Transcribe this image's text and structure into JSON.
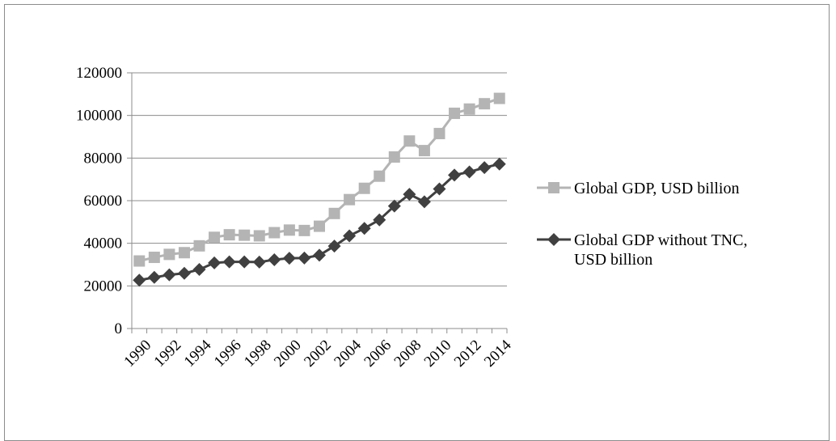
{
  "chart_data": {
    "type": "line",
    "categories": [
      "1990",
      "1991",
      "1992",
      "1993",
      "1994",
      "1995",
      "1996",
      "1997",
      "1998",
      "1999",
      "2000",
      "2001",
      "2002",
      "2003",
      "2004",
      "2005",
      "2006",
      "2007",
      "2008",
      "2009",
      "2010",
      "2011",
      "2012",
      "2013",
      "2014"
    ],
    "x_tick_labels": [
      "1990",
      "1992",
      "1994",
      "1996",
      "1998",
      "2000",
      "2002",
      "2004",
      "2006",
      "2008",
      "2010",
      "2012",
      "2014"
    ],
    "y_tick_labels": [
      "0",
      "20000",
      "40000",
      "60000",
      "80000",
      "100000",
      "120000"
    ],
    "ylim": [
      0,
      120000
    ],
    "y_ticks": [
      0,
      20000,
      40000,
      60000,
      80000,
      100000,
      120000
    ],
    "grid": "horizontal",
    "legend_position": "right",
    "series": [
      {
        "name": "Global GDP, USD billion",
        "legend_lines": [
          "Global GDP, USD billion"
        ],
        "color": "#b4b4b4",
        "marker": "square",
        "values": [
          31700,
          33400,
          34800,
          35600,
          38800,
          42800,
          44000,
          43800,
          43500,
          45000,
          46200,
          46000,
          48000,
          54000,
          60500,
          65800,
          71500,
          80500,
          88000,
          83500,
          91500,
          101000,
          103000,
          105500,
          108000
        ]
      },
      {
        "name": "Global GDP without TNC, USD billion",
        "legend_lines": [
          "Global GDP without TNC,",
          "USD billion"
        ],
        "color": "#404040",
        "marker": "diamond",
        "values": [
          22700,
          24000,
          25200,
          25900,
          27700,
          30800,
          31300,
          31300,
          31200,
          32300,
          33000,
          33100,
          34400,
          38700,
          43500,
          47000,
          51000,
          57500,
          63000,
          59500,
          65500,
          72000,
          73500,
          75500,
          77200
        ]
      }
    ]
  }
}
